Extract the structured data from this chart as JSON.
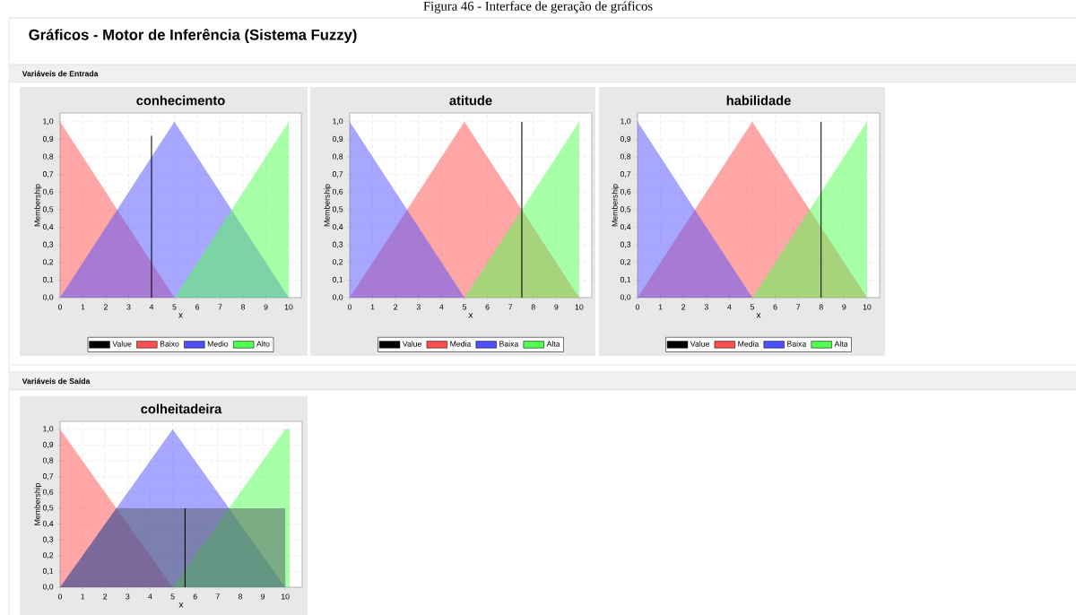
{
  "chart_data": [
    {
      "type": "area",
      "title": "conhecimento",
      "xlabel": "x",
      "ylabel": "Membership",
      "annotations": [
        "Figura 46 - Interface de geração de gráficos",
        "Gráficos - Motor de Inferência (Sistema Fuzzy)",
        "Variáveis de Entrada"
      ],
      "xlim": [
        0,
        10.55
      ],
      "ylim": [
        0,
        1.05
      ],
      "xticks": [
        0,
        1,
        2,
        3,
        4,
        5,
        6,
        7,
        8,
        9,
        10
      ],
      "yticks": [
        {
          "value": 0,
          "label": "0,0"
        },
        {
          "value": 0.1,
          "label": "0,1"
        },
        {
          "value": 0.2,
          "label": "0,2"
        },
        {
          "value": 0.3,
          "label": "0,3"
        },
        {
          "value": 0.4,
          "label": "0,4"
        },
        {
          "value": 0.5,
          "label": "0,5"
        },
        {
          "value": 0.6,
          "label": "0,6"
        },
        {
          "value": 0.7,
          "label": "0,7"
        },
        {
          "value": 0.8,
          "label": "0,8"
        },
        {
          "value": 0.9,
          "label": "0,9"
        },
        {
          "value": 1,
          "label": "1,0"
        }
      ],
      "grid": true,
      "legend": "bottom",
      "series": [
        {
          "name": "Value",
          "type": "line",
          "color": "#000000",
          "x": [
            4,
            4
          ],
          "values": [
            0,
            0.92
          ]
        },
        {
          "name": "Baixo",
          "color": "#ff5050",
          "x": [
            0,
            5
          ],
          "values": [
            1,
            0
          ]
        },
        {
          "name": "Medio",
          "color": "#5050ff",
          "x": [
            0,
            5,
            10
          ],
          "values": [
            0,
            1,
            0
          ]
        },
        {
          "name": "Alto",
          "color": "#50ff50",
          "x": [
            5,
            10
          ],
          "values": [
            0,
            1
          ]
        }
      ]
    },
    {
      "type": "area",
      "title": "atitude",
      "xlabel": "x",
      "ylabel": "Membership",
      "xlim": [
        0,
        10.55
      ],
      "ylim": [
        0,
        1.05
      ],
      "xticks": [
        0,
        1,
        2,
        3,
        4,
        5,
        6,
        7,
        8,
        9,
        10
      ],
      "yticks": [
        {
          "value": 0,
          "label": "0,0"
        },
        {
          "value": 0.1,
          "label": "0,1"
        },
        {
          "value": 0.2,
          "label": "0,2"
        },
        {
          "value": 0.3,
          "label": "0,3"
        },
        {
          "value": 0.4,
          "label": "0,4"
        },
        {
          "value": 0.5,
          "label": "0,5"
        },
        {
          "value": 0.6,
          "label": "0,6"
        },
        {
          "value": 0.7,
          "label": "0,7"
        },
        {
          "value": 0.8,
          "label": "0,8"
        },
        {
          "value": 0.9,
          "label": "0,9"
        },
        {
          "value": 1,
          "label": "1,0"
        }
      ],
      "grid": true,
      "legend": "bottom",
      "series": [
        {
          "name": "Value",
          "type": "line",
          "color": "#000000",
          "x": [
            7.5,
            7.5
          ],
          "values": [
            0,
            1
          ]
        },
        {
          "name": "Media",
          "color": "#ff5050",
          "x": [
            0,
            5,
            10
          ],
          "values": [
            0,
            1,
            0
          ]
        },
        {
          "name": "Baixa",
          "color": "#5050ff",
          "x": [
            0,
            5
          ],
          "values": [
            1,
            0
          ]
        },
        {
          "name": "Alta",
          "color": "#50ff50",
          "x": [
            5,
            10
          ],
          "values": [
            0,
            1
          ]
        }
      ]
    },
    {
      "type": "area",
      "title": "habilidade",
      "xlabel": "x",
      "ylabel": "Membership",
      "xlim": [
        0,
        10.55
      ],
      "ylim": [
        0,
        1.05
      ],
      "xticks": [
        0,
        1,
        2,
        3,
        4,
        5,
        6,
        7,
        8,
        9,
        10
      ],
      "yticks": [
        {
          "value": 0,
          "label": "0,0"
        },
        {
          "value": 0.1,
          "label": "0,1"
        },
        {
          "value": 0.2,
          "label": "0,2"
        },
        {
          "value": 0.3,
          "label": "0,3"
        },
        {
          "value": 0.4,
          "label": "0,4"
        },
        {
          "value": 0.5,
          "label": "0,5"
        },
        {
          "value": 0.6,
          "label": "0,6"
        },
        {
          "value": 0.7,
          "label": "0,7"
        },
        {
          "value": 0.8,
          "label": "0,8"
        },
        {
          "value": 0.9,
          "label": "0,9"
        },
        {
          "value": 1,
          "label": "1,0"
        }
      ],
      "grid": true,
      "legend": "bottom",
      "series": [
        {
          "name": "Value",
          "type": "line",
          "color": "#000000",
          "x": [
            8,
            8
          ],
          "values": [
            0,
            1
          ]
        },
        {
          "name": "Media",
          "color": "#ff5050",
          "x": [
            0,
            5,
            10
          ],
          "values": [
            0,
            1,
            0
          ]
        },
        {
          "name": "Baixa",
          "color": "#5050ff",
          "x": [
            0,
            5
          ],
          "values": [
            1,
            0
          ]
        },
        {
          "name": "Alta",
          "color": "#50ff50",
          "x": [
            5,
            10
          ],
          "values": [
            0,
            1
          ]
        }
      ]
    },
    {
      "type": "area",
      "title": "colheitadeira",
      "xlabel": "x",
      "ylabel": "Membership",
      "annotations": [
        "Variáveis de Saída"
      ],
      "xlim": [
        0,
        10.75
      ],
      "ylim": [
        0,
        1.05
      ],
      "xticks": [
        0,
        1,
        2,
        3,
        4,
        5,
        6,
        7,
        8,
        9,
        10
      ],
      "yticks": [
        {
          "value": 0,
          "label": "0,0"
        },
        {
          "value": 0.1,
          "label": "0,1"
        },
        {
          "value": 0.2,
          "label": "0,2"
        },
        {
          "value": 0.3,
          "label": "0,3"
        },
        {
          "value": 0.4,
          "label": "0,4"
        },
        {
          "value": 0.5,
          "label": "0,5"
        },
        {
          "value": 0.6,
          "label": "0,6"
        },
        {
          "value": 0.7,
          "label": "0,7"
        },
        {
          "value": 0.8,
          "label": "0,8"
        },
        {
          "value": 0.9,
          "label": "0,9"
        },
        {
          "value": 1,
          "label": "1,0"
        }
      ],
      "grid": true,
      "series": [
        {
          "color": "#ff5050",
          "x": [
            0,
            5
          ],
          "values": [
            1,
            0
          ]
        },
        {
          "color": "#5050ff",
          "x": [
            0,
            5,
            10
          ],
          "values": [
            0,
            1,
            0
          ]
        },
        {
          "color": "#50ff50",
          "x": [
            5,
            10,
            10.2,
            10.2
          ],
          "values": [
            0,
            1,
            1,
            0
          ]
        },
        {
          "color": "#505a60",
          "x": [
            0,
            2.5,
            10,
            10
          ],
          "values": [
            0,
            0.5,
            0.5,
            0
          ]
        },
        {
          "type": "line",
          "color": "#000000",
          "x": [
            5.55,
            5.55
          ],
          "values": [
            0,
            0.5
          ]
        }
      ]
    }
  ]
}
